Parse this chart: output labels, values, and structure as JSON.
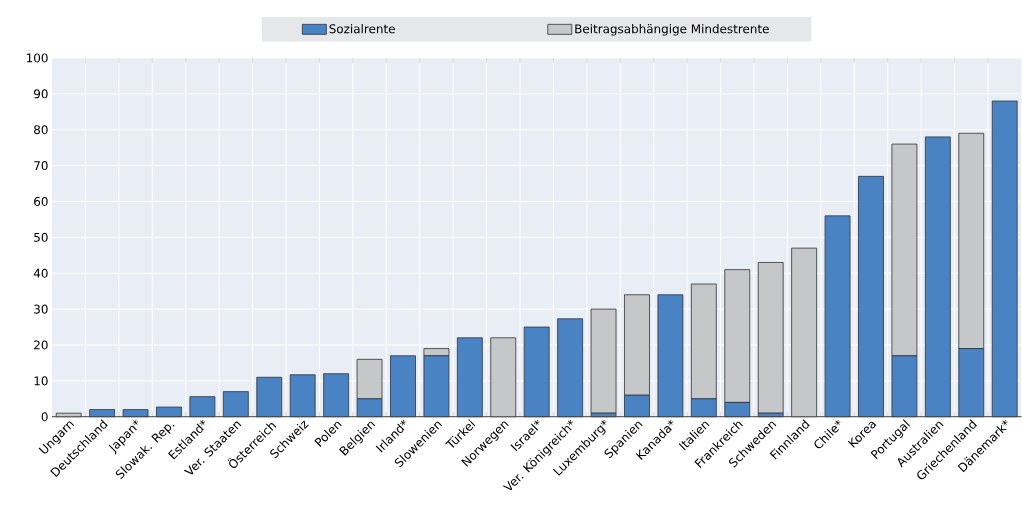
{
  "chart_data": {
    "type": "bar",
    "stacked": true,
    "categories": [
      "Ungarn",
      "Deutschland",
      "Japan*",
      "Slowak. Rep.",
      "Estland*",
      "Ver. Staaten",
      "Österreich",
      "Schweiz",
      "Polen",
      "Belgien",
      "Irland*",
      "Slowenien",
      "Türkei",
      "Norwegen",
      "Israel*",
      "Ver. Königreich*",
      "Luxemburg*",
      "Spanien",
      "Kanada*",
      "Italien",
      "Frankreich",
      "Schweden",
      "Finnland",
      "Chile*",
      "Korea",
      "Portugal",
      "Australien",
      "Griechenland",
      "Dänemark*"
    ],
    "series": [
      {
        "name": "Sozialrente",
        "color": "#4a83c3",
        "values": [
          0,
          2,
          2,
          2.7,
          5.6,
          7,
          11,
          11.7,
          12,
          5,
          17,
          17,
          22,
          0,
          25,
          27.3,
          1,
          6,
          34,
          5,
          4,
          1,
          0,
          56,
          67,
          17,
          78,
          19,
          88
        ]
      },
      {
        "name": "Beitragsabhängige Mindestrente",
        "color": "#c6c7c9",
        "values": [
          1,
          0,
          0,
          0,
          0,
          0,
          0,
          0,
          0,
          11,
          0,
          2,
          0,
          22,
          0,
          0,
          29,
          28,
          0,
          32,
          37,
          42,
          47,
          0,
          0,
          59,
          0,
          60,
          0
        ]
      }
    ],
    "ylim": [
      0,
      100
    ],
    "yticks": [
      0,
      10,
      20,
      30,
      40,
      50,
      60,
      70,
      80,
      90,
      100
    ],
    "grid": true,
    "legend": "top"
  }
}
